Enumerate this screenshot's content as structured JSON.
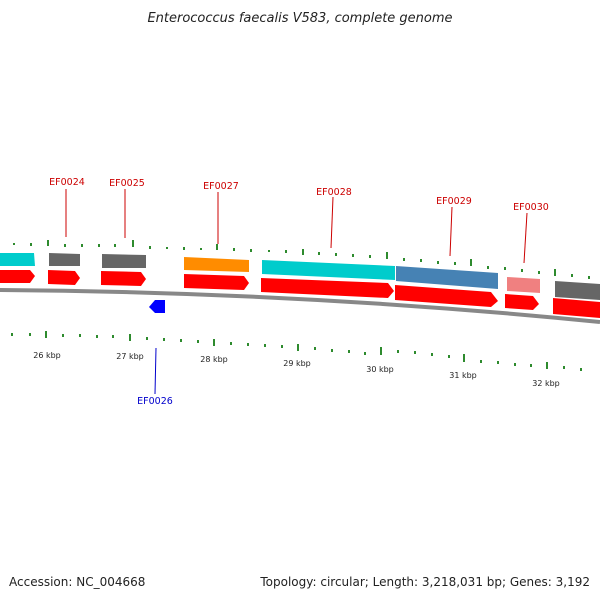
{
  "title": "Enterococcus faecalis V583, complete genome",
  "footer": {
    "accession": "Accession: NC_004668",
    "summary": "Topology: circular; Length: 3,218,031 bp; Genes: 3,192"
  },
  "colors": {
    "label_red": "#cc0000",
    "label_blue": "#0000cc",
    "backbone": "#888888",
    "tick_green": "#2e8b2e",
    "cds_red": "#ff0000",
    "strand_minus": "#0000ff",
    "cog_cyan": "#00cccc",
    "cog_gray": "#666666",
    "cog_orange": "#ff8c00",
    "cog_steelblue": "#4682b4",
    "cog_salmon": "#f08080"
  },
  "ticks": [
    "26 kbp",
    "27 kbp",
    "28 kbp",
    "29 kbp",
    "30 kbp",
    "31 kbp",
    "32 kbp"
  ],
  "genes": [
    {
      "id": "EF0024",
      "color": "label_red"
    },
    {
      "id": "EF0025",
      "color": "label_red"
    },
    {
      "id": "EF0026",
      "color": "label_blue"
    },
    {
      "id": "EF0027",
      "color": "label_red"
    },
    {
      "id": "EF0028",
      "color": "label_red"
    },
    {
      "id": "EF0029",
      "color": "label_red"
    },
    {
      "id": "EF0030",
      "color": "label_red"
    }
  ]
}
